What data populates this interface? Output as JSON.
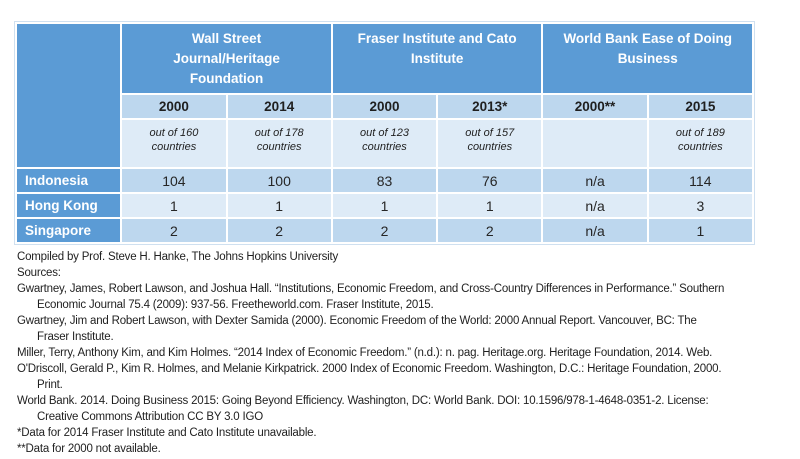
{
  "table": {
    "groups": [
      "Wall Street Journal/Heritage Foundation",
      "Fraser Institute and Cato Institute",
      "World Bank Ease of Doing Business"
    ],
    "years": [
      "2000",
      "2014",
      "2000",
      "2013*",
      "2000**",
      "2015"
    ],
    "subnotes": [
      "out of 160 countries",
      "out of 178 countries",
      "out of 123 countries",
      "out of 157 countries",
      "",
      "out of 189 countries"
    ],
    "rows": [
      {
        "label": "Indonesia",
        "values": [
          "104",
          "100",
          "83",
          "76",
          "n/a",
          "114"
        ]
      },
      {
        "label": "Hong Kong",
        "values": [
          "1",
          "1",
          "1",
          "1",
          "n/a",
          "3"
        ]
      },
      {
        "label": "Singapore",
        "values": [
          "2",
          "2",
          "2",
          "2",
          "n/a",
          "1"
        ]
      }
    ]
  },
  "footer": {
    "lines": [
      "Compiled by Prof. Steve H. Hanke, The Johns Hopkins University",
      "Sources:",
      "Gwartney, James, Robert Lawson, and Joshua Hall. “Institutions, Economic Freedom, and Cross-Country Differences in Performance.” Southern",
      "Economic Journal 75.4 (2009): 937-56. Freetheworld.com. Fraser Institute, 2015.",
      "Gwartney, Jim and Robert Lawson, with Dexter Samida (2000). Economic Freedom of the World: 2000 Annual Report. Vancouver, BC: The",
      "Fraser Institute.",
      "Miller, Terry, Anthony Kim, and Kim Holmes. “2014 Index of Economic Freedom.” (n.d.): n. pag. Heritage.org. Heritage Foundation, 2014. Web.",
      "O'Driscoll, Gerald P., Kim R. Holmes, and Melanie Kirkpatrick. 2000 Index of Economic Freedom. Washington, D.C.: Heritage Foundation, 2000.",
      "Print.",
      "World Bank. 2014. Doing Business 2015: Going Beyond Efficiency. Washington, DC: World Bank. DOI: 10.1596/978-1-4648-0351-2. License:",
      "Creative Commons Attribution CC BY 3.0 IGO",
      "*Data for 2014 Fraser Institute and Cato Institute unavailable.",
      "**Data for 2000 not available."
    ]
  },
  "colors": {
    "header-blue": "#5b9bd5",
    "band-medium": "#bdd7ee",
    "band-light": "#deebf7",
    "text-dark": "#262626",
    "white": "#ffffff"
  }
}
